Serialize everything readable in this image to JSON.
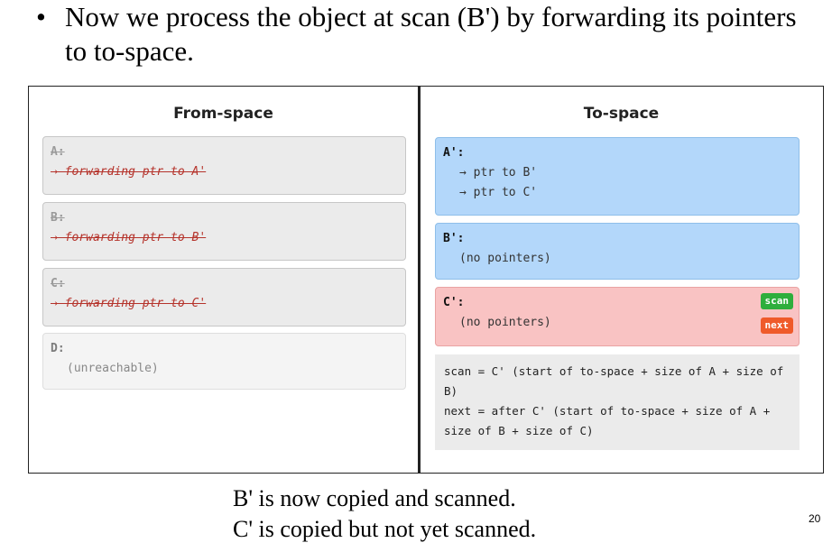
{
  "slide": {
    "bullet_char": "•",
    "bullet_text": "Now we process the object at scan (B') by forwarding its pointers to to-space.",
    "caption_line1": "B' is now copied and scanned.",
    "caption_line2": "C' is copied but not yet scanned.",
    "page_number": "20"
  },
  "from_space": {
    "title": "From-space",
    "objects": [
      {
        "name": "A:",
        "line": "→ forwarding ptr to A'"
      },
      {
        "name": "B:",
        "line": "→ forwarding ptr to B'"
      },
      {
        "name": "C:",
        "line": "→ forwarding ptr to C'"
      },
      {
        "name": "D:",
        "line": "(unreachable)"
      }
    ]
  },
  "to_space": {
    "title": "To-space",
    "objects": [
      {
        "name": "A':",
        "lines": [
          "→ ptr to B'",
          "→ ptr to C'"
        ]
      },
      {
        "name": "B':",
        "lines": [
          "(no pointers)"
        ]
      },
      {
        "name": "C':",
        "lines": [
          "(no pointers)"
        ],
        "tags": [
          "scan",
          "next"
        ]
      }
    ],
    "note_line1": "scan = C' (start of to-space + size of A + size of B)",
    "note_line2": "next = after C' (start of to-space + size of A + size of B + size of C)"
  },
  "colors": {
    "to_space_copied": "#b3d7fa",
    "to_space_unscanned": "#f9c3c3",
    "scan_tag": "#2eae3c",
    "next_tag": "#ef5a2a",
    "forwarding_text": "#b5332b"
  }
}
